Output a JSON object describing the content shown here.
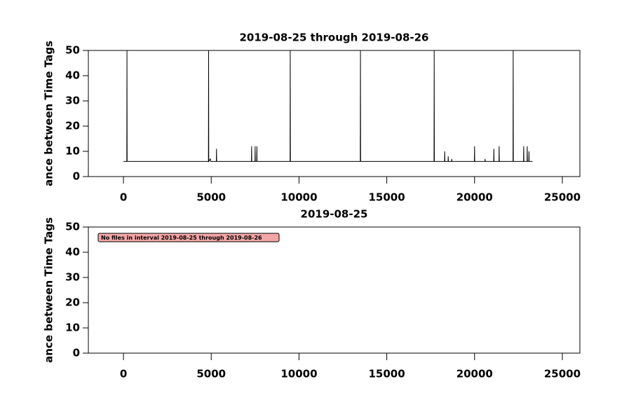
{
  "chart_data": [
    {
      "type": "line",
      "title": "2019-08-25 through 2019-08-26",
      "ylabel": "ance between Time Tags",
      "x": [
        0,
        190,
        200,
        210,
        4840,
        4850,
        4860,
        4950,
        4970,
        5290,
        5300,
        5310,
        7290,
        7300,
        7310,
        7490,
        7500,
        7510,
        7590,
        7600,
        7610,
        9490,
        9500,
        9510,
        13490,
        13500,
        13510,
        17690,
        17700,
        17710,
        18290,
        18300,
        18310,
        18490,
        18500,
        18510,
        18690,
        18700,
        18710,
        19990,
        20000,
        20010,
        20590,
        20600,
        20610,
        21090,
        21100,
        21110,
        21390,
        21400,
        21410,
        22190,
        22200,
        22210,
        22790,
        22800,
        22810,
        22990,
        23000,
        23010,
        23090,
        23100,
        23110,
        23300
      ],
      "series": [
        {
          "color": "#000000",
          "values": [
            6,
            6,
            50,
            6,
            6,
            50,
            6,
            7,
            6,
            6,
            11,
            6,
            6,
            12,
            6,
            6,
            12,
            6,
            6,
            12,
            6,
            6,
            50,
            6,
            6,
            50,
            6,
            6,
            50,
            6,
            6,
            10,
            6,
            6,
            8,
            6,
            6,
            7,
            6,
            6,
            12,
            6,
            6,
            7,
            6,
            6,
            11,
            6,
            6,
            12,
            6,
            6,
            50,
            6,
            6,
            12,
            6,
            6,
            12,
            6,
            6,
            10,
            6,
            6
          ]
        }
      ],
      "xlim": [
        -2000,
        26000
      ],
      "xticks": [
        0,
        5000,
        10000,
        15000,
        20000,
        25000
      ],
      "ylim": [
        0,
        50
      ],
      "yticks": [
        0,
        10,
        20,
        30,
        40,
        50
      ]
    },
    {
      "type": "line",
      "title": "2019-08-25",
      "ylabel": "ance between Time Tags",
      "annotation": "No files in interval 2019-08-25 through 2019-08-26",
      "xlim": [
        -2000,
        26000
      ],
      "xticks": [
        0,
        5000,
        10000,
        15000,
        20000,
        25000
      ],
      "ylim": [
        0,
        50
      ],
      "yticks": [
        0,
        10,
        20,
        30,
        40,
        50
      ]
    }
  ]
}
